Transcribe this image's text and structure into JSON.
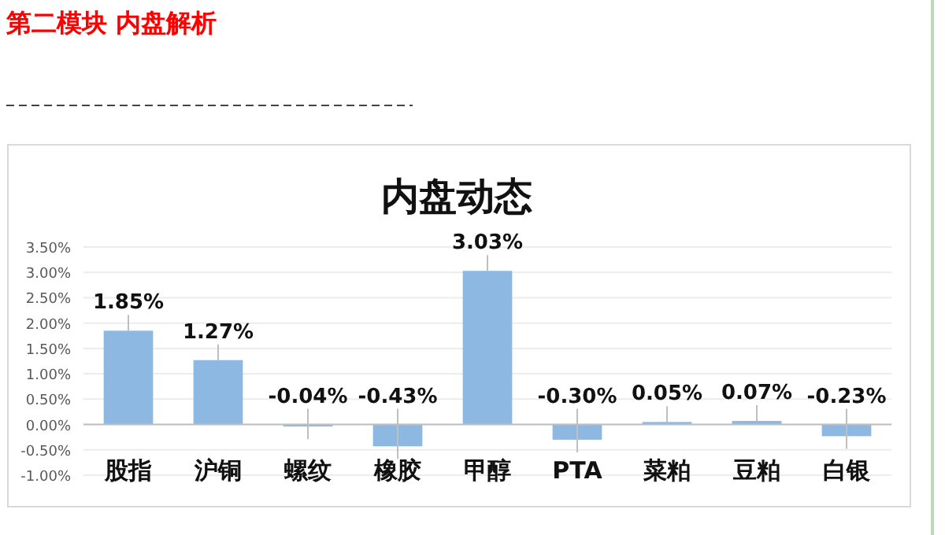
{
  "chart_data": {
    "type": "bar",
    "title": "内盘动态",
    "annotations": [
      "第二模块 内盘解析"
    ],
    "categories": [
      "股指",
      "沪铜",
      "螺纹",
      "橡胶",
      "甲醇",
      "PTA",
      "菜粕",
      "豆粕",
      "白银"
    ],
    "values": [
      1.85,
      1.27,
      -0.04,
      -0.43,
      3.03,
      -0.3,
      0.05,
      0.07,
      -0.23
    ],
    "value_labels": [
      "1.85%",
      "1.27%",
      "-0.04%",
      "-0.43%",
      "3.03%",
      "-0.30%",
      "0.05%",
      "0.07%",
      "-0.23%"
    ],
    "color": "#8db8e2",
    "ylim": [
      -1,
      3.5
    ],
    "yticks": [
      {
        "value": -1,
        "label": "-1.00%"
      },
      {
        "value": -0.5,
        "label": "-0.50%"
      },
      {
        "value": 0,
        "label": "0.00%"
      },
      {
        "value": 0.5,
        "label": "0.50%"
      },
      {
        "value": 1,
        "label": "1.00%"
      },
      {
        "value": 1.5,
        "label": "1.50%"
      },
      {
        "value": 2,
        "label": "2.00%"
      },
      {
        "value": 2.5,
        "label": "2.50%"
      },
      {
        "value": 3,
        "label": "3.00%"
      },
      {
        "value": 3.5,
        "label": "3.50%"
      }
    ],
    "grid": "y"
  }
}
